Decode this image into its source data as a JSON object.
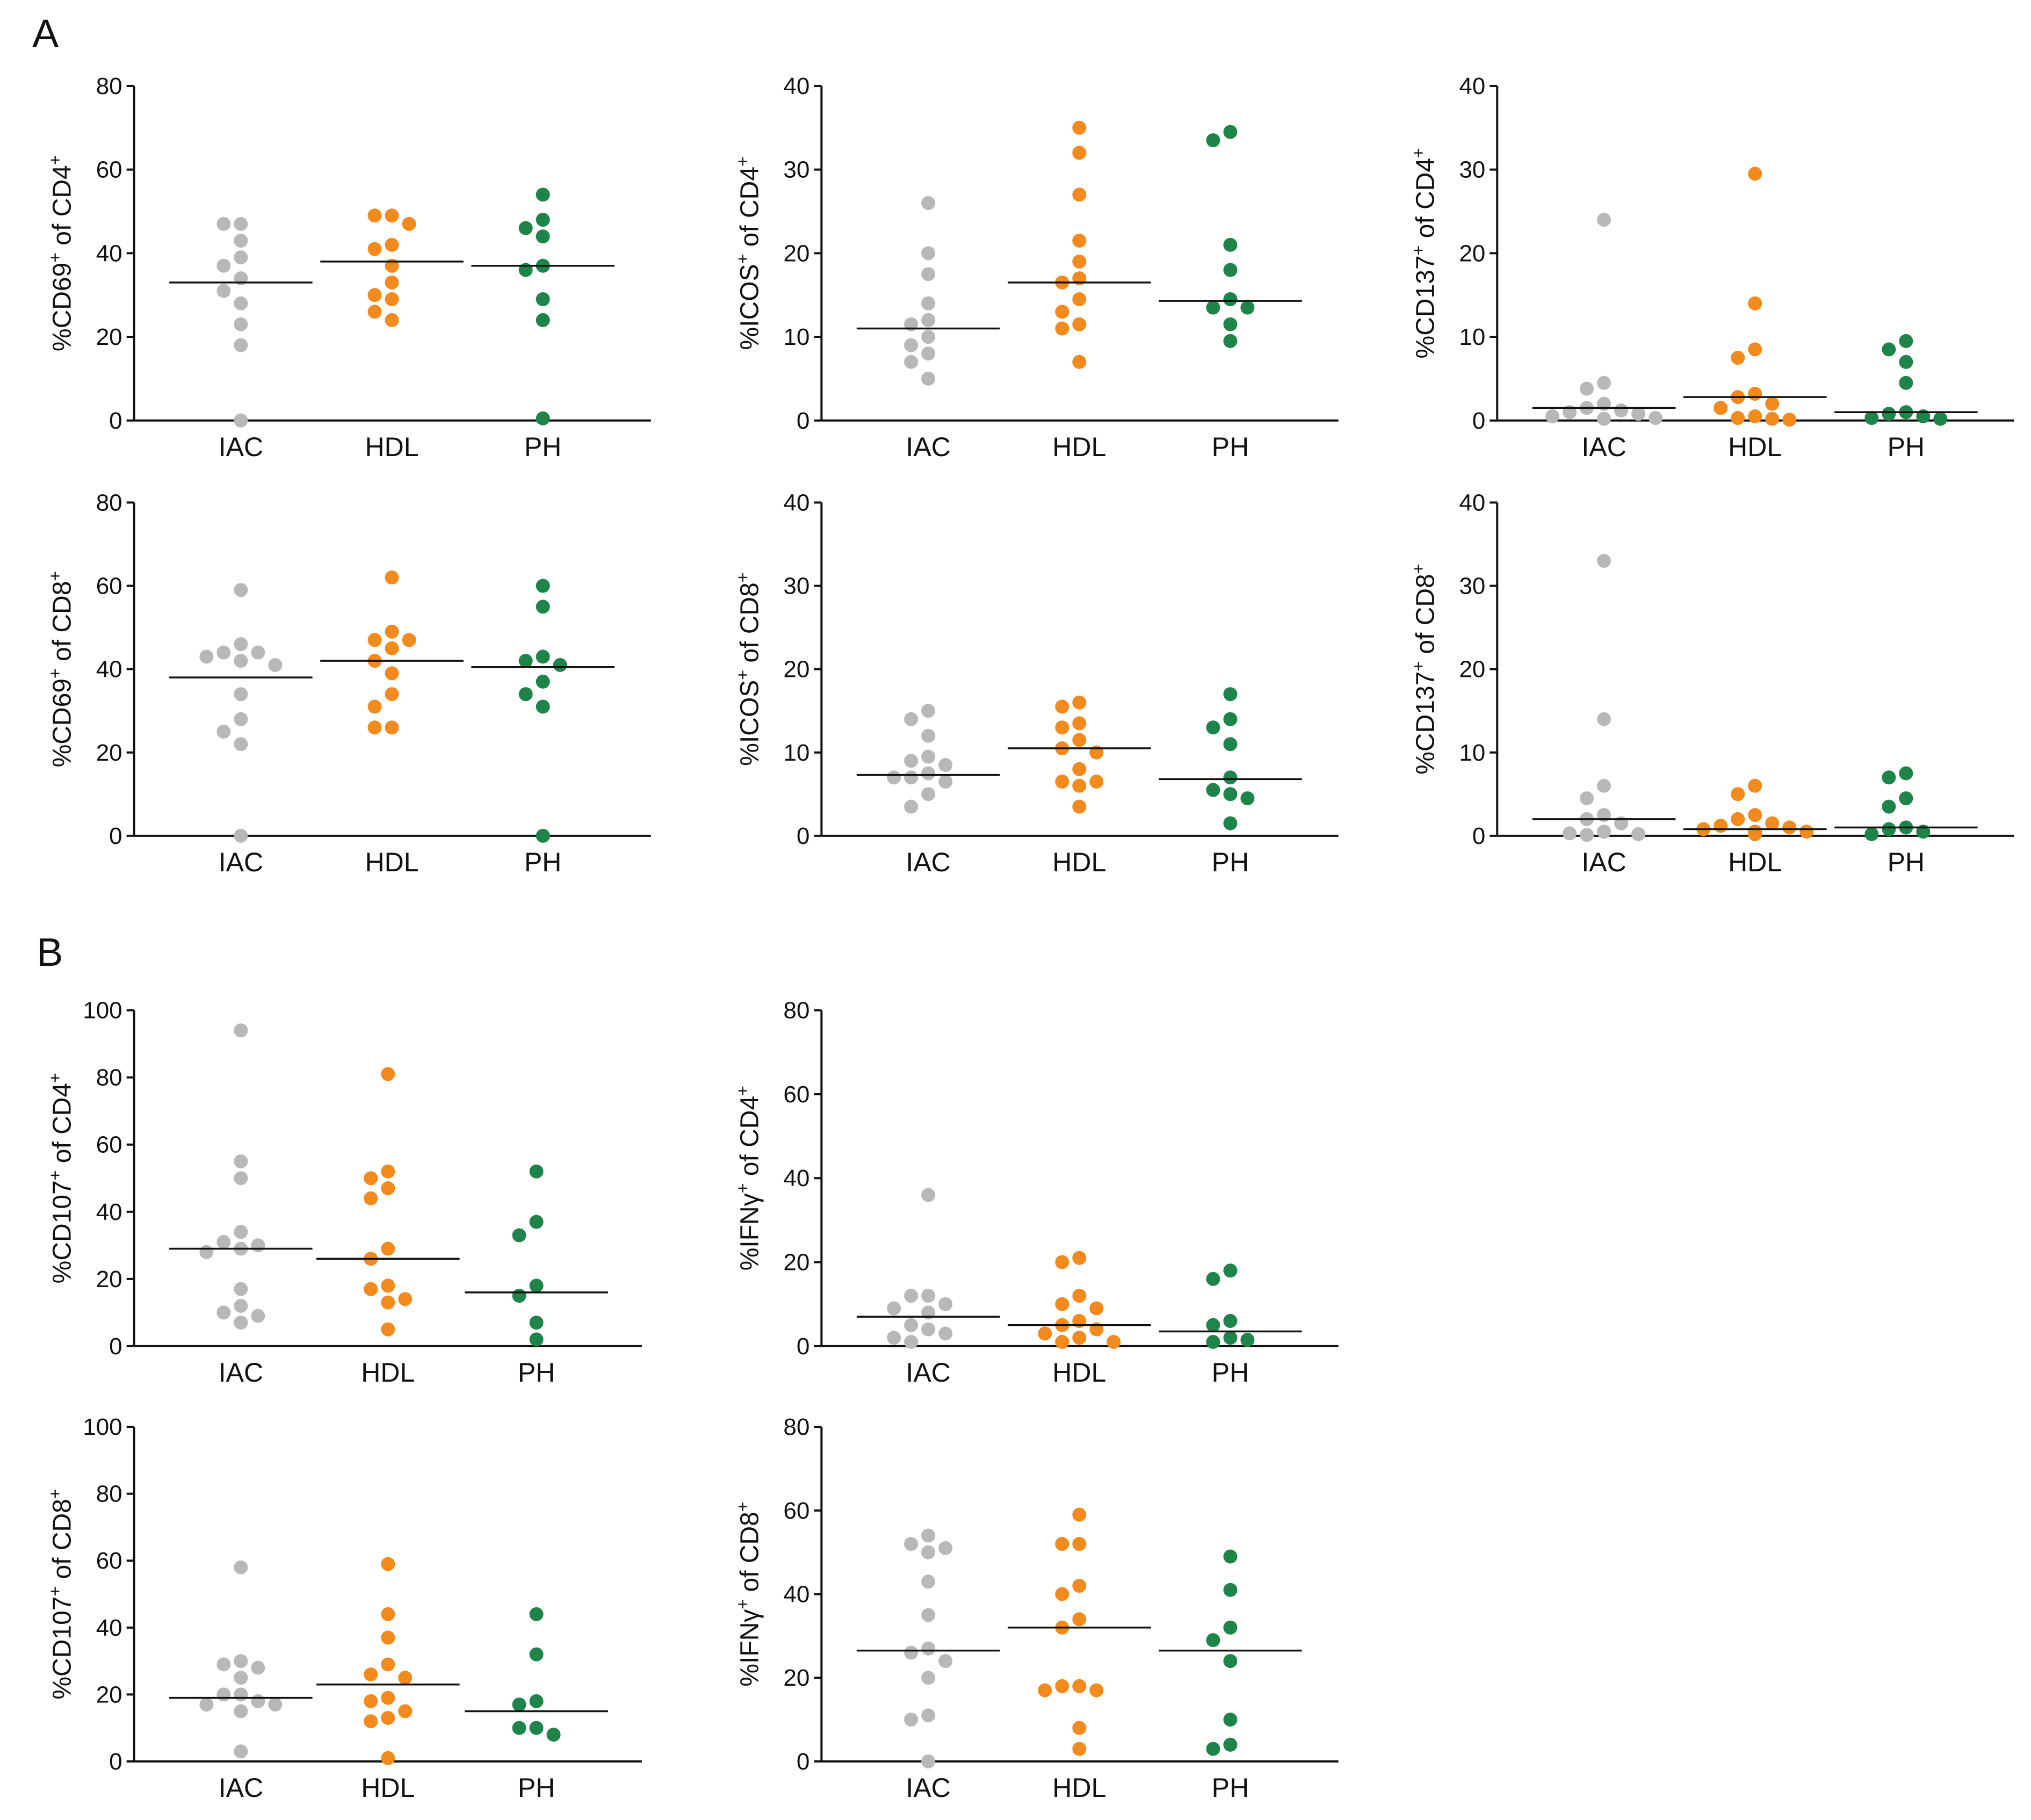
{
  "panel_labels": {
    "a": "A",
    "b": "B"
  },
  "colors": {
    "IAC": "#b8b8b8",
    "HDL": "#f28a1e",
    "PH": "#1e8449"
  },
  "chart_data": [
    {
      "type": "scatter",
      "id": "cd69-cd4",
      "ylabel": {
        "base": "%CD69",
        "sup1": "+",
        "mid": " of CD4",
        "sup2": "+"
      },
      "categories": [
        "IAC",
        "HDL",
        "PH"
      ],
      "ylim": [
        0,
        80
      ],
      "yticks": [
        0,
        20,
        40,
        60,
        80
      ],
      "series": [
        {
          "name": "IAC",
          "values": [
            47,
            47,
            43,
            39,
            37,
            34,
            31,
            28,
            23,
            18,
            0
          ],
          "median": 33
        },
        {
          "name": "HDL",
          "values": [
            49,
            49,
            47,
            42,
            41,
            37,
            33,
            30,
            29,
            26,
            24
          ],
          "median": 38
        },
        {
          "name": "PH",
          "values": [
            54,
            48,
            46,
            44,
            37,
            36,
            29,
            24,
            0.5
          ],
          "median": 37
        }
      ]
    },
    {
      "type": "scatter",
      "id": "icos-cd4",
      "ylabel": {
        "base": "%ICOS",
        "sup1": "+",
        "mid": " of CD4",
        "sup2": "+"
      },
      "categories": [
        "IAC",
        "HDL",
        "PH"
      ],
      "ylim": [
        0,
        40
      ],
      "yticks": [
        0,
        10,
        20,
        30,
        40
      ],
      "series": [
        {
          "name": "IAC",
          "values": [
            26,
            20,
            17.5,
            14,
            12,
            11.5,
            10,
            9,
            8,
            7,
            5
          ],
          "median": 11
        },
        {
          "name": "HDL",
          "values": [
            35,
            32,
            27,
            21.5,
            19,
            17,
            16.5,
            14.5,
            13,
            11.5,
            11,
            7
          ],
          "median": 16.5
        },
        {
          "name": "PH",
          "values": [
            34.5,
            33.5,
            21,
            18,
            14.5,
            13.5,
            13.5,
            11.5,
            9.5
          ],
          "median": 14.3
        }
      ]
    },
    {
      "type": "scatter",
      "id": "cd137-cd4",
      "ylabel": {
        "base": "%CD137",
        "sup1": "+",
        "mid": " of CD4",
        "sup2": "+"
      },
      "categories": [
        "IAC",
        "HDL",
        "PH"
      ],
      "ylim": [
        0,
        40
      ],
      "yticks": [
        0,
        10,
        20,
        30,
        40
      ],
      "series": [
        {
          "name": "IAC",
          "values": [
            24,
            4.5,
            3.8,
            2,
            1.5,
            1.2,
            1,
            0.8,
            0.5,
            0.3,
            0.2
          ],
          "median": 1.5
        },
        {
          "name": "HDL",
          "values": [
            29.5,
            14,
            8.5,
            7.5,
            3.2,
            2.8,
            2,
            1.5,
            0.5,
            0.3,
            0.2,
            0.1
          ],
          "median": 2.8
        },
        {
          "name": "PH",
          "values": [
            9.5,
            8.5,
            7,
            4.5,
            1,
            0.8,
            0.5,
            0.3,
            0.2
          ],
          "median": 1
        }
      ]
    },
    {
      "type": "scatter",
      "id": "cd69-cd8",
      "ylabel": {
        "base": "%CD69",
        "sup1": "+",
        "mid": " of CD8",
        "sup2": "+"
      },
      "categories": [
        "IAC",
        "HDL",
        "PH"
      ],
      "ylim": [
        0,
        80
      ],
      "yticks": [
        0,
        20,
        40,
        60,
        80
      ],
      "series": [
        {
          "name": "IAC",
          "values": [
            59,
            46,
            44,
            44,
            43,
            42,
            41,
            34,
            28,
            25,
            22,
            0
          ],
          "median": 38
        },
        {
          "name": "HDL",
          "values": [
            62,
            49,
            47,
            47,
            45,
            42,
            39,
            34,
            31,
            26,
            26
          ],
          "median": 42
        },
        {
          "name": "PH",
          "values": [
            60,
            55,
            43,
            42,
            41,
            37,
            34,
            31,
            0
          ],
          "median": 40.5
        }
      ]
    },
    {
      "type": "scatter",
      "id": "icos-cd8",
      "ylabel": {
        "base": "%ICOS",
        "sup1": "+",
        "mid": " of CD8",
        "sup2": "+"
      },
      "categories": [
        "IAC",
        "HDL",
        "PH"
      ],
      "ylim": [
        0,
        40
      ],
      "yticks": [
        0,
        10,
        20,
        30,
        40
      ],
      "series": [
        {
          "name": "IAC",
          "values": [
            15,
            14,
            12,
            9.5,
            9,
            8.5,
            7.5,
            7,
            7,
            6.5,
            5,
            3.5
          ],
          "median": 7.3
        },
        {
          "name": "HDL",
          "values": [
            16,
            15.5,
            13.5,
            13,
            11.5,
            10.5,
            10,
            8,
            6.5,
            6.5,
            6,
            3.5
          ],
          "median": 10.5
        },
        {
          "name": "PH",
          "values": [
            17,
            14,
            13,
            11,
            7,
            5.5,
            5,
            4.5,
            1.5
          ],
          "median": 6.8
        }
      ]
    },
    {
      "type": "scatter",
      "id": "cd137-cd8",
      "ylabel": {
        "base": "%CD137",
        "sup1": "+",
        "mid": " of CD8",
        "sup2": "+"
      },
      "categories": [
        "IAC",
        "HDL",
        "PH"
      ],
      "ylim": [
        0,
        40
      ],
      "yticks": [
        0,
        10,
        20,
        30,
        40
      ],
      "series": [
        {
          "name": "IAC",
          "values": [
            33,
            14,
            6,
            4.5,
            2.5,
            2,
            1.5,
            0.5,
            0.3,
            0.2,
            0.1
          ],
          "median": 2
        },
        {
          "name": "HDL",
          "values": [
            6,
            5,
            2.5,
            2,
            1.5,
            1.2,
            1,
            0.8,
            0.5,
            0.5,
            0.3,
            0.2
          ],
          "median": 0.8
        },
        {
          "name": "PH",
          "values": [
            7.5,
            7,
            4.5,
            3.5,
            1,
            0.8,
            0.5,
            0.2
          ],
          "median": 1
        }
      ]
    },
    {
      "type": "scatter",
      "id": "cd107-cd4",
      "ylabel": {
        "base": "%CD107",
        "sup1": "+",
        "mid": " of CD4",
        "sup2": "+"
      },
      "categories": [
        "IAC",
        "HDL",
        "PH"
      ],
      "ylim": [
        0,
        100
      ],
      "yticks": [
        0,
        20,
        40,
        60,
        80,
        100
      ],
      "series": [
        {
          "name": "IAC",
          "values": [
            94,
            55,
            50,
            34,
            31,
            30,
            29,
            28,
            17,
            12,
            10,
            9,
            7
          ],
          "median": 29
        },
        {
          "name": "HDL",
          "values": [
            81,
            52,
            50,
            47,
            44,
            29,
            26,
            18,
            17,
            14,
            13,
            5
          ],
          "median": 26
        },
        {
          "name": "PH",
          "values": [
            52,
            37,
            33,
            18,
            15,
            7,
            2
          ],
          "median": 16
        }
      ]
    },
    {
      "type": "scatter",
      "id": "ifny-cd4",
      "ylabel": {
        "base": "%IFNγ",
        "sup1": "+",
        "mid": " of CD4",
        "sup2": "+"
      },
      "categories": [
        "IAC",
        "HDL",
        "PH"
      ],
      "ylim": [
        0,
        80
      ],
      "yticks": [
        0,
        20,
        40,
        60,
        80
      ],
      "series": [
        {
          "name": "IAC",
          "values": [
            36,
            12,
            12,
            10,
            9,
            8,
            5,
            4,
            3,
            2,
            1
          ],
          "median": 7
        },
        {
          "name": "HDL",
          "values": [
            21,
            20,
            12,
            10,
            9,
            6,
            5,
            4,
            3,
            2,
            1,
            1
          ],
          "median": 5
        },
        {
          "name": "PH",
          "values": [
            18,
            16,
            6,
            5,
            2,
            1.5,
            1
          ],
          "median": 3.5
        }
      ]
    },
    {
      "type": "scatter",
      "id": "cd107-cd8",
      "ylabel": {
        "base": "%CD107",
        "sup1": "+",
        "mid": " of CD8",
        "sup2": "+"
      },
      "categories": [
        "IAC",
        "HDL",
        "PH"
      ],
      "ylim": [
        0,
        100
      ],
      "yticks": [
        0,
        20,
        40,
        60,
        80,
        100
      ],
      "series": [
        {
          "name": "IAC",
          "values": [
            58,
            30,
            29,
            28,
            25,
            20,
            20,
            18,
            17,
            17,
            15,
            3
          ],
          "median": 19
        },
        {
          "name": "HDL",
          "values": [
            59,
            44,
            37,
            29,
            26,
            25,
            19,
            18,
            15,
            13,
            12,
            1
          ],
          "median": 23
        },
        {
          "name": "PH",
          "values": [
            44,
            32,
            18,
            17,
            10,
            10,
            8
          ],
          "median": 15
        }
      ]
    },
    {
      "type": "scatter",
      "id": "ifny-cd8",
      "ylabel": {
        "base": "%IFNγ",
        "sup1": "+",
        "mid": " of CD8",
        "sup2": "+"
      },
      "categories": [
        "IAC",
        "HDL",
        "PH"
      ],
      "ylim": [
        0,
        80
      ],
      "yticks": [
        0,
        20,
        40,
        60,
        80
      ],
      "series": [
        {
          "name": "IAC",
          "values": [
            54,
            52,
            51,
            50,
            43,
            35,
            27,
            26,
            24,
            20,
            11,
            10,
            0
          ],
          "median": 26.5
        },
        {
          "name": "HDL",
          "values": [
            59,
            52,
            52,
            42,
            40,
            34,
            32,
            18,
            18,
            17,
            17,
            8,
            3
          ],
          "median": 32
        },
        {
          "name": "PH",
          "values": [
            49,
            41,
            32,
            29,
            24,
            10,
            4,
            3
          ],
          "median": 26.5
        }
      ]
    }
  ]
}
